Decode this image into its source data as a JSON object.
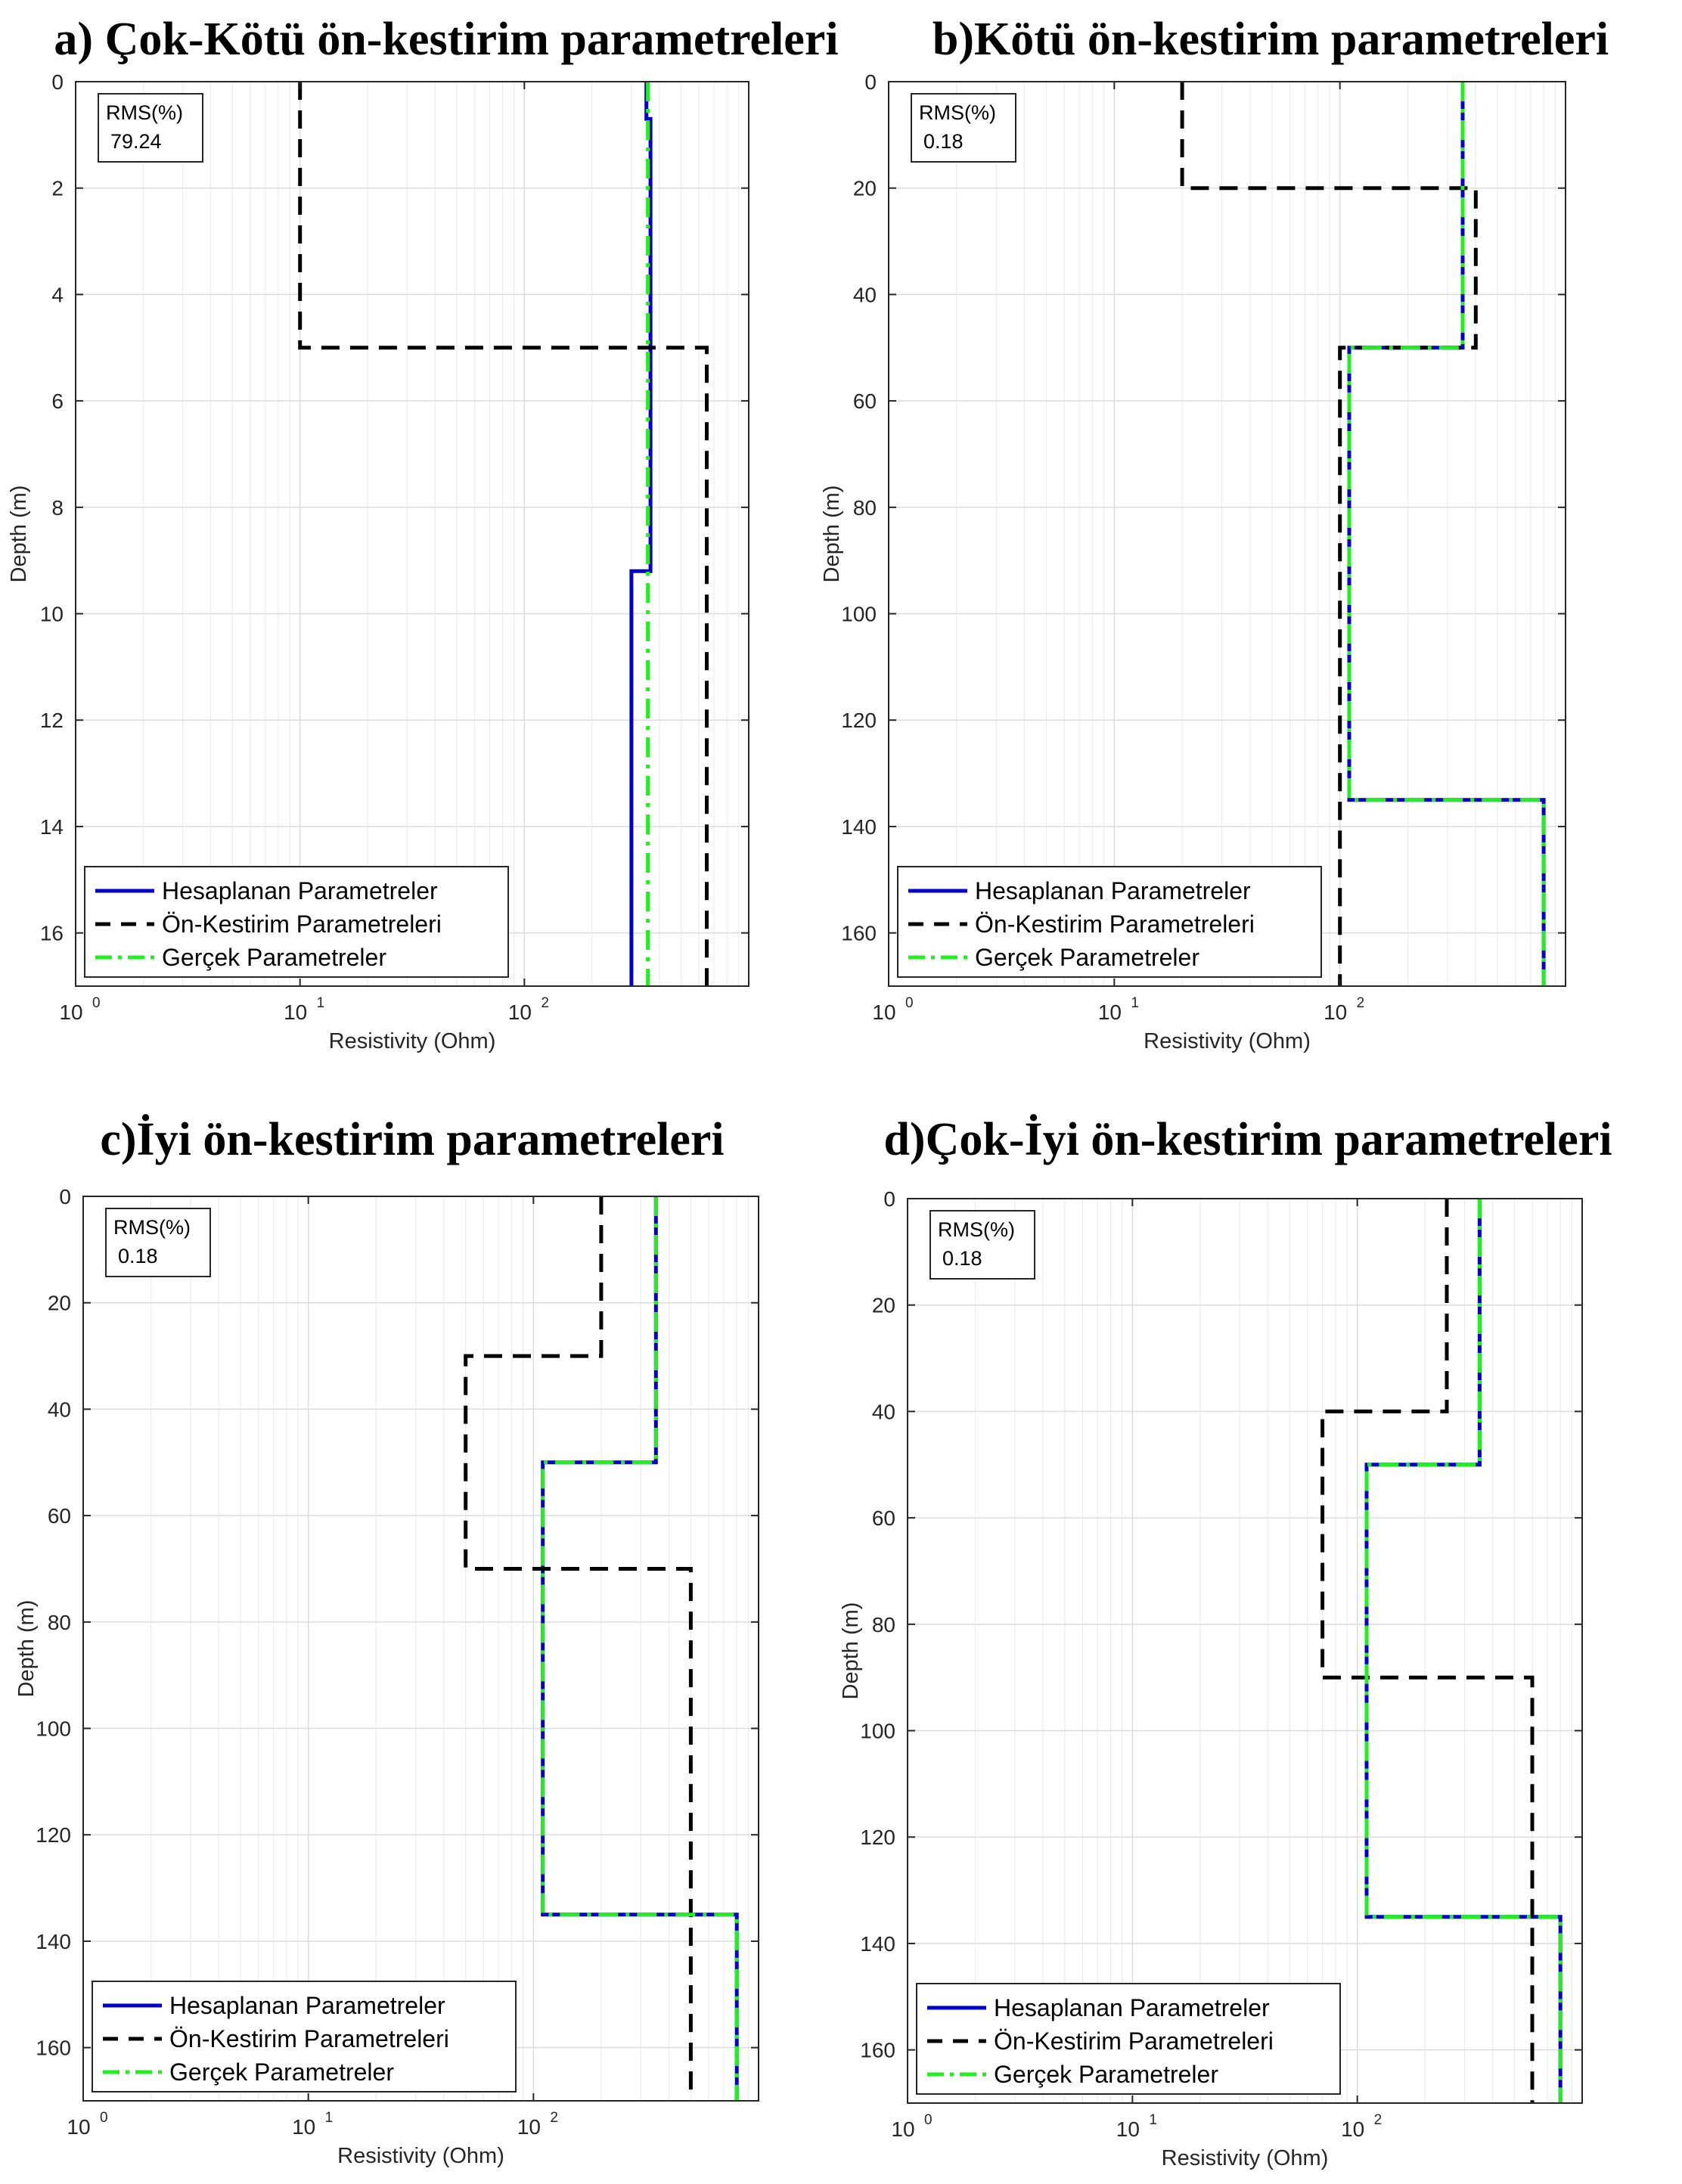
{
  "chart_data": [
    {
      "type": "line",
      "panel_id": "a",
      "title": "a) Çok-Kötü ön-kestirim parametreleri",
      "xlabel": "Resistivity (Ohm)",
      "ylabel": "Depth (m)",
      "xscale": "log",
      "xlim": [
        1,
        1000
      ],
      "ylim": [
        0,
        17
      ],
      "y_reversed": true,
      "grid": true,
      "xticks": [
        1,
        10,
        100
      ],
      "xtick_labels": [
        {
          "base": "10",
          "exp": "0"
        },
        {
          "base": "10",
          "exp": "1"
        },
        {
          "base": "10",
          "exp": "2"
        }
      ],
      "yticks": [
        0,
        2,
        4,
        6,
        8,
        10,
        12,
        14,
        16
      ],
      "ytick_labels": [
        "0",
        "2",
        "4",
        "6",
        "8",
        "10",
        "12",
        "14",
        "16"
      ],
      "rms_label": "RMS(%)",
      "rms_value": "79.24",
      "legend_position": "bottom-left",
      "series": [
        {
          "name": "Hesaplanan Parametreler",
          "color": "#0000cc",
          "dash": "solid",
          "resistivity": [
            350,
            365,
            300
          ],
          "depth_bottoms": [
            0.7,
            9.2,
            17
          ]
        },
        {
          "name": "Ön-Kestirim Parametreleri",
          "color": "#000000",
          "dash": "dashed",
          "resistivity": [
            10,
            650
          ],
          "depth_bottoms": [
            5,
            17
          ]
        },
        {
          "name": "Gerçek Parametreler",
          "color": "#22ee22",
          "dash": "dashdot",
          "resistivity": [
            355
          ],
          "depth_bottoms": [
            17
          ]
        }
      ]
    },
    {
      "type": "line",
      "panel_id": "b",
      "title": "b)Kötü ön-kestirim parametreleri",
      "xlabel": "Resistivity (Ohm)",
      "ylabel": "Depth (m)",
      "xscale": "log",
      "xlim": [
        1,
        1000
      ],
      "ylim": [
        0,
        170
      ],
      "y_reversed": true,
      "grid": true,
      "xticks": [
        1,
        10,
        100
      ],
      "xtick_labels": [
        {
          "base": "10",
          "exp": "0"
        },
        {
          "base": "10",
          "exp": "1"
        },
        {
          "base": "10",
          "exp": "2"
        }
      ],
      "yticks": [
        0,
        20,
        40,
        60,
        80,
        100,
        120,
        140,
        160
      ],
      "ytick_labels": [
        "0",
        "20",
        "40",
        "60",
        "80",
        "100",
        "120",
        "140",
        "160"
      ],
      "rms_label": "RMS(%)",
      "rms_value": "0.18",
      "legend_position": "bottom-left",
      "series": [
        {
          "name": "Hesaplanan Parametreler",
          "color": "#0000cc",
          "dash": "solid",
          "resistivity": [
            350,
            110,
            800
          ],
          "depth_bottoms": [
            50,
            135,
            170
          ]
        },
        {
          "name": "Ön-Kestirim Parametreleri",
          "color": "#000000",
          "dash": "dashed",
          "resistivity": [
            20,
            400,
            100
          ],
          "depth_bottoms": [
            20,
            50,
            170
          ]
        },
        {
          "name": "Gerçek Parametreler",
          "color": "#22ee22",
          "dash": "dashdot",
          "resistivity": [
            350,
            110,
            800
          ],
          "depth_bottoms": [
            50,
            135,
            170
          ]
        }
      ]
    },
    {
      "type": "line",
      "panel_id": "c",
      "title": "c)İyi ön-kestirim parametreleri",
      "xlabel": "Resistivity (Ohm)",
      "ylabel": "Depth (m)",
      "xscale": "log",
      "xlim": [
        1,
        1000
      ],
      "ylim": [
        0,
        170
      ],
      "y_reversed": true,
      "grid": true,
      "xticks": [
        1,
        10,
        100
      ],
      "xtick_labels": [
        {
          "base": "10",
          "exp": "0"
        },
        {
          "base": "10",
          "exp": "1"
        },
        {
          "base": "10",
          "exp": "2"
        }
      ],
      "yticks": [
        0,
        20,
        40,
        60,
        80,
        100,
        120,
        140,
        160
      ],
      "ytick_labels": [
        "0",
        "20",
        "40",
        "60",
        "80",
        "100",
        "120",
        "140",
        "160"
      ],
      "rms_label": "RMS(%)",
      "rms_value": "0.18",
      "legend_position": "bottom-left",
      "series": [
        {
          "name": "Hesaplanan Parametreler",
          "color": "#0000cc",
          "dash": "solid",
          "resistivity": [
            350,
            110,
            800
          ],
          "depth_bottoms": [
            50,
            135,
            170
          ]
        },
        {
          "name": "Ön-Kestirim Parametreleri",
          "color": "#000000",
          "dash": "dashed",
          "resistivity": [
            200,
            50,
            500
          ],
          "depth_bottoms": [
            30,
            70,
            170
          ]
        },
        {
          "name": "Gerçek Parametreler",
          "color": "#22ee22",
          "dash": "dashdot",
          "resistivity": [
            350,
            110,
            800
          ],
          "depth_bottoms": [
            50,
            135,
            170
          ]
        }
      ]
    },
    {
      "type": "line",
      "panel_id": "d",
      "title": "d)Çok-İyi ön-kestirim parametreleri",
      "xlabel": "Resistivity (Ohm)",
      "ylabel": "Depth (m)",
      "xscale": "log",
      "xlim": [
        1,
        1000
      ],
      "ylim": [
        0,
        170
      ],
      "y_reversed": true,
      "grid": true,
      "xticks": [
        1,
        10,
        100
      ],
      "xtick_labels": [
        {
          "base": "10",
          "exp": "0"
        },
        {
          "base": "10",
          "exp": "1"
        },
        {
          "base": "10",
          "exp": "2"
        }
      ],
      "yticks": [
        0,
        20,
        40,
        60,
        80,
        100,
        120,
        140,
        160
      ],
      "ytick_labels": [
        "0",
        "20",
        "40",
        "60",
        "80",
        "100",
        "120",
        "140",
        "160"
      ],
      "rms_label": "RMS(%)",
      "rms_value": "0.18",
      "legend_position": "bottom-left",
      "series": [
        {
          "name": "Hesaplanan Parametreler",
          "color": "#0000cc",
          "dash": "solid",
          "resistivity": [
            350,
            110,
            800
          ],
          "depth_bottoms": [
            50,
            135,
            170
          ]
        },
        {
          "name": "Ön-Kestirim Parametreleri",
          "color": "#000000",
          "dash": "dashed",
          "resistivity": [
            250,
            70,
            600
          ],
          "depth_bottoms": [
            40,
            90,
            170
          ]
        },
        {
          "name": "Gerçek Parametreler",
          "color": "#22ee22",
          "dash": "dashdot",
          "resistivity": [
            350,
            110,
            800
          ],
          "depth_bottoms": [
            50,
            135,
            170
          ]
        }
      ]
    }
  ]
}
